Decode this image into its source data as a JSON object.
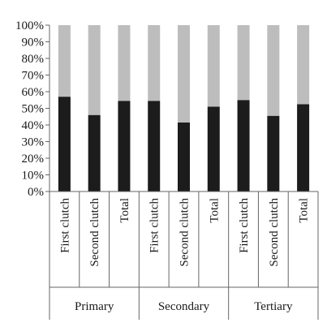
{
  "chart_data": {
    "type": "bar",
    "stacked": true,
    "percent": true,
    "title": "",
    "xlabel": "",
    "ylabel": "",
    "ylim": [
      0,
      100
    ],
    "yticks": [
      "0%",
      "10%",
      "20%",
      "30%",
      "40%",
      "50%",
      "60%",
      "70%",
      "80%",
      "90%",
      "100%"
    ],
    "grid": false,
    "legend": "none",
    "groups": [
      {
        "label": "Primary",
        "categories": [
          "First clutch",
          "Second clutch",
          "Total"
        ]
      },
      {
        "label": "Secondary",
        "categories": [
          "First clutch",
          "Second clutch",
          "Total"
        ]
      },
      {
        "label": "Tertiary",
        "categories": [
          "First clutch",
          "Second clutch",
          "Total"
        ]
      }
    ],
    "series": [
      {
        "color": "#1c1c1c",
        "values": [
          57,
          46,
          54.5,
          54.5,
          41.5,
          51,
          55,
          45.5,
          52.5
        ]
      },
      {
        "color": "#bdbdbd",
        "values": [
          43,
          54,
          45.5,
          45.5,
          58.5,
          49,
          45,
          54.5,
          47.5
        ]
      }
    ]
  }
}
